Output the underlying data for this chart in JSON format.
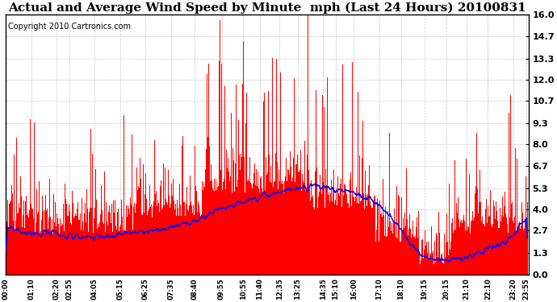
{
  "title": "Actual and Average Wind Speed by Minute  mph (Last 24 Hours) 20100831",
  "copyright": "Copyright 2010 Cartronics.com",
  "yticks": [
    0.0,
    1.3,
    2.7,
    4.0,
    5.3,
    6.7,
    8.0,
    9.3,
    10.7,
    12.0,
    13.3,
    14.7,
    16.0
  ],
  "ymax": 16.0,
  "ymin": 0.0,
  "bar_color": "#FF0000",
  "line_color": "#0000FF",
  "background_color": "#FFFFFF",
  "grid_color": "#C0C0C0",
  "title_fontsize": 11,
  "copyright_fontsize": 7,
  "xtick_fontsize": 6,
  "ytick_fontsize": 8,
  "x_labels": [
    "00:00",
    "01:10",
    "02:20",
    "02:55",
    "04:05",
    "05:15",
    "06:25",
    "07:35",
    "08:40",
    "09:55",
    "10:55",
    "11:40",
    "12:35",
    "13:25",
    "14:35",
    "15:10",
    "16:00",
    "17:10",
    "18:10",
    "19:15",
    "20:15",
    "21:10",
    "22:10",
    "23:20",
    "23:55"
  ],
  "x_tick_minutes": [
    0,
    70,
    140,
    175,
    245,
    315,
    385,
    455,
    520,
    595,
    655,
    700,
    755,
    805,
    875,
    910,
    960,
    1030,
    1090,
    1155,
    1215,
    1270,
    1330,
    1400,
    1435
  ],
  "avg_profile": [
    2.8,
    2.6,
    2.5,
    2.4,
    2.3,
    2.4,
    2.6,
    2.8,
    3.0,
    3.5,
    4.0,
    4.5,
    4.8,
    5.2,
    5.5,
    5.3,
    5.0,
    4.5,
    3.0,
    1.2,
    0.8,
    1.0,
    1.5,
    2.0,
    2.8,
    3.2,
    3.5
  ],
  "avg_profile_times": [
    0,
    60,
    120,
    180,
    240,
    300,
    360,
    420,
    480,
    540,
    600,
    660,
    720,
    780,
    840,
    900,
    960,
    1020,
    1080,
    1140,
    1200,
    1260,
    1320,
    1380,
    1410,
    1425,
    1439
  ]
}
